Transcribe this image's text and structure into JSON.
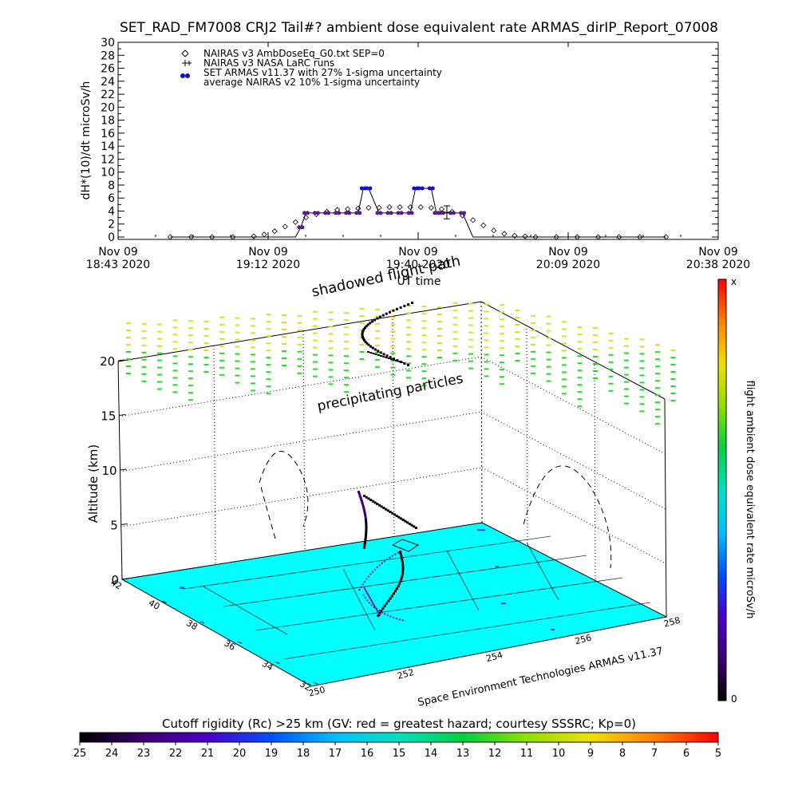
{
  "title": "SET_RAD_FM7008  CRJ2 Tail#? ambient dose equivalent rate ARMAS_dirIP_Report_07008",
  "top_plot": {
    "ylabel": "dH*(10)/dt microSv/h",
    "xlabel": "UT time",
    "yticks": [
      "0",
      "2",
      "4",
      "6",
      "8",
      "10",
      "12",
      "14",
      "16",
      "18",
      "20",
      "22",
      "24",
      "26",
      "28",
      "30"
    ],
    "xticks": [
      {
        "line1": "Nov 09",
        "line2": "18:43 2020"
      },
      {
        "line1": "Nov 09",
        "line2": "19:12 2020"
      },
      {
        "line1": "Nov 09",
        "line2": "19:40 2020"
      },
      {
        "line1": "Nov 09",
        "line2": "20:09 2020"
      },
      {
        "line1": "Nov 09",
        "line2": "20:38 2020"
      }
    ],
    "legend": [
      {
        "symbol": "diamond",
        "label": "NAIRAS v3 AmbDoseEq_G0.txt SEP=0"
      },
      {
        "symbol": "plus",
        "label": "NAIRAS v3 NASA LaRC runs"
      },
      {
        "symbol": "blue-dot",
        "label": "SET ARMAS v11.37 with 27% 1-sigma uncertainty"
      },
      {
        "symbol": "none",
        "label": "average NAIRAS v2 10% 1-sigma uncertainty"
      }
    ]
  },
  "chart_data": [
    {
      "type": "line",
      "title": "SET_RAD_FM7008  CRJ2 Tail#? ambient dose equivalent rate ARMAS_dirIP_Report_07008",
      "xlabel": "UT time",
      "ylabel": "dH*(10)/dt microSv/h",
      "x_unit": "minutes after Nov 09 18:43 2020",
      "xlim": [
        0,
        115
      ],
      "ylim": [
        0,
        30
      ],
      "series": [
        {
          "name": "SET ARMAS v11.37 with 27% 1-sigma uncertainty",
          "x": [
            10,
            20,
            30,
            34,
            35,
            36,
            38,
            40,
            42,
            44,
            46,
            47,
            48,
            50,
            52,
            54,
            56,
            57,
            58,
            60,
            61,
            62,
            64,
            66,
            68,
            70,
            75,
            80,
            85,
            90,
            95,
            100,
            105
          ],
          "values": [
            0,
            0,
            0,
            0,
            1.5,
            3.7,
            3.7,
            3.7,
            3.7,
            3.7,
            3.7,
            7.5,
            7.5,
            3.7,
            3.7,
            3.7,
            3.7,
            7.5,
            7.5,
            7.5,
            3.7,
            3.7,
            3.7,
            3.7,
            0,
            0,
            0,
            0,
            0,
            0,
            0,
            0,
            0
          ]
        },
        {
          "name": "NAIRAS v3 AmbDoseEq_G0.txt SEP=0",
          "x": [
            10,
            14,
            18,
            22,
            26,
            28,
            30,
            32,
            34,
            36,
            38,
            40,
            42,
            44,
            46,
            48,
            50,
            52,
            54,
            56,
            58,
            60,
            62,
            64,
            66,
            68,
            70,
            72,
            74,
            76,
            78,
            80,
            84,
            88,
            92,
            96,
            100,
            105
          ],
          "values": [
            0,
            0,
            0,
            0,
            0.1,
            0.4,
            0.9,
            1.6,
            2.3,
            3.0,
            3.5,
            3.9,
            4.2,
            4.3,
            4.4,
            4.5,
            4.5,
            4.6,
            4.6,
            4.6,
            4.6,
            4.5,
            4.3,
            3.9,
            3.3,
            2.6,
            1.8,
            1.0,
            0.5,
            0.2,
            0.1,
            0,
            0,
            0,
            0,
            0,
            0,
            0
          ]
        },
        {
          "name": "NAIRAS v3 NASA LaRC runs",
          "x": [
            63
          ],
          "values": [
            3.8
          ],
          "error": [
            1.0
          ]
        }
      ]
    },
    {
      "type": "scatter",
      "subtype": "3d-flight-track",
      "zlabel": "Altitude (km)",
      "zlim": [
        0,
        20
      ],
      "lat_ticks": [
        "42",
        "40",
        "38",
        "36",
        "34",
        "32"
      ],
      "lon_ticks": [
        "250",
        "252",
        "254",
        "256",
        "258"
      ],
      "annotations": [
        "shadowed flight path",
        "precipitating particles"
      ],
      "credit": "Space Environment Technologies ARMAS v11.37",
      "side_colorbar": {
        "label": "flight ambient dose equivalent rate microSv/h",
        "min_label": "0",
        "max_label": "x"
      }
    },
    {
      "type": "heatmap",
      "subtype": "colorbar",
      "label": "Cutoff rigidity (Rc) >25 km (GV: red = greatest hazard; courtesy SSSRC; Kp=0)",
      "ticks": [
        "25",
        "24",
        "23",
        "22",
        "21",
        "20",
        "19",
        "18",
        "17",
        "16",
        "15",
        "14",
        "13",
        "12",
        "11",
        "10",
        "9",
        "8",
        "7",
        "6",
        "5"
      ]
    }
  ],
  "colors": {
    "armas": "#1010cc",
    "armas_mid": "#5a1a8a",
    "ground": "#00ffff",
    "precip_green": "#22dd22",
    "precip_yellow": "#dddd22"
  }
}
